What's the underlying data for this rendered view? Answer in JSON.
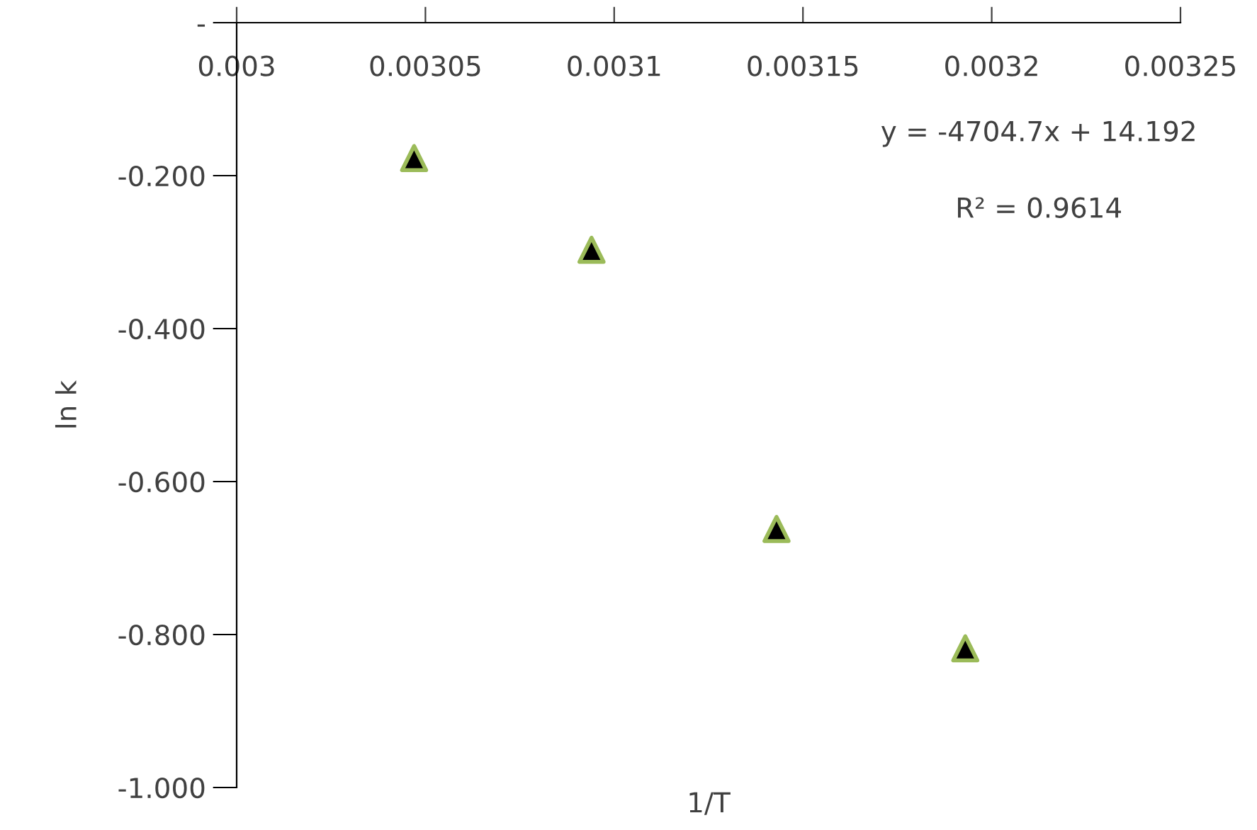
{
  "chart_data": {
    "type": "scatter",
    "xlabel": "1/T",
    "ylabel": "ln k",
    "x": [
      0.003047,
      0.003094,
      0.003143,
      0.003193
    ],
    "series": [
      {
        "color": "#000000",
        "values": [
          -0.177,
          -0.297,
          -0.662,
          -0.818
        ]
      }
    ],
    "marker": "triangle",
    "grid": false,
    "legend": false,
    "xlim": [
      0.003,
      0.00325
    ],
    "xticks": [
      0.003,
      0.00305,
      0.0031,
      0.00315,
      0.0032,
      0.00325
    ],
    "ylim": [
      -1.0,
      0
    ],
    "yticks": [
      {
        "value": 0,
        "label": "-"
      },
      {
        "value": -0.2,
        "label": "-0.200"
      },
      {
        "value": -0.4,
        "label": "-0.400"
      },
      {
        "value": -0.6,
        "label": "-0.600"
      },
      {
        "value": -0.8,
        "label": "-0.800"
      },
      {
        "value": -1.0,
        "label": "-1.000"
      }
    ],
    "annotations": [
      "y = -4704.7x + 14.192",
      "R² = 0.9614"
    ]
  }
}
